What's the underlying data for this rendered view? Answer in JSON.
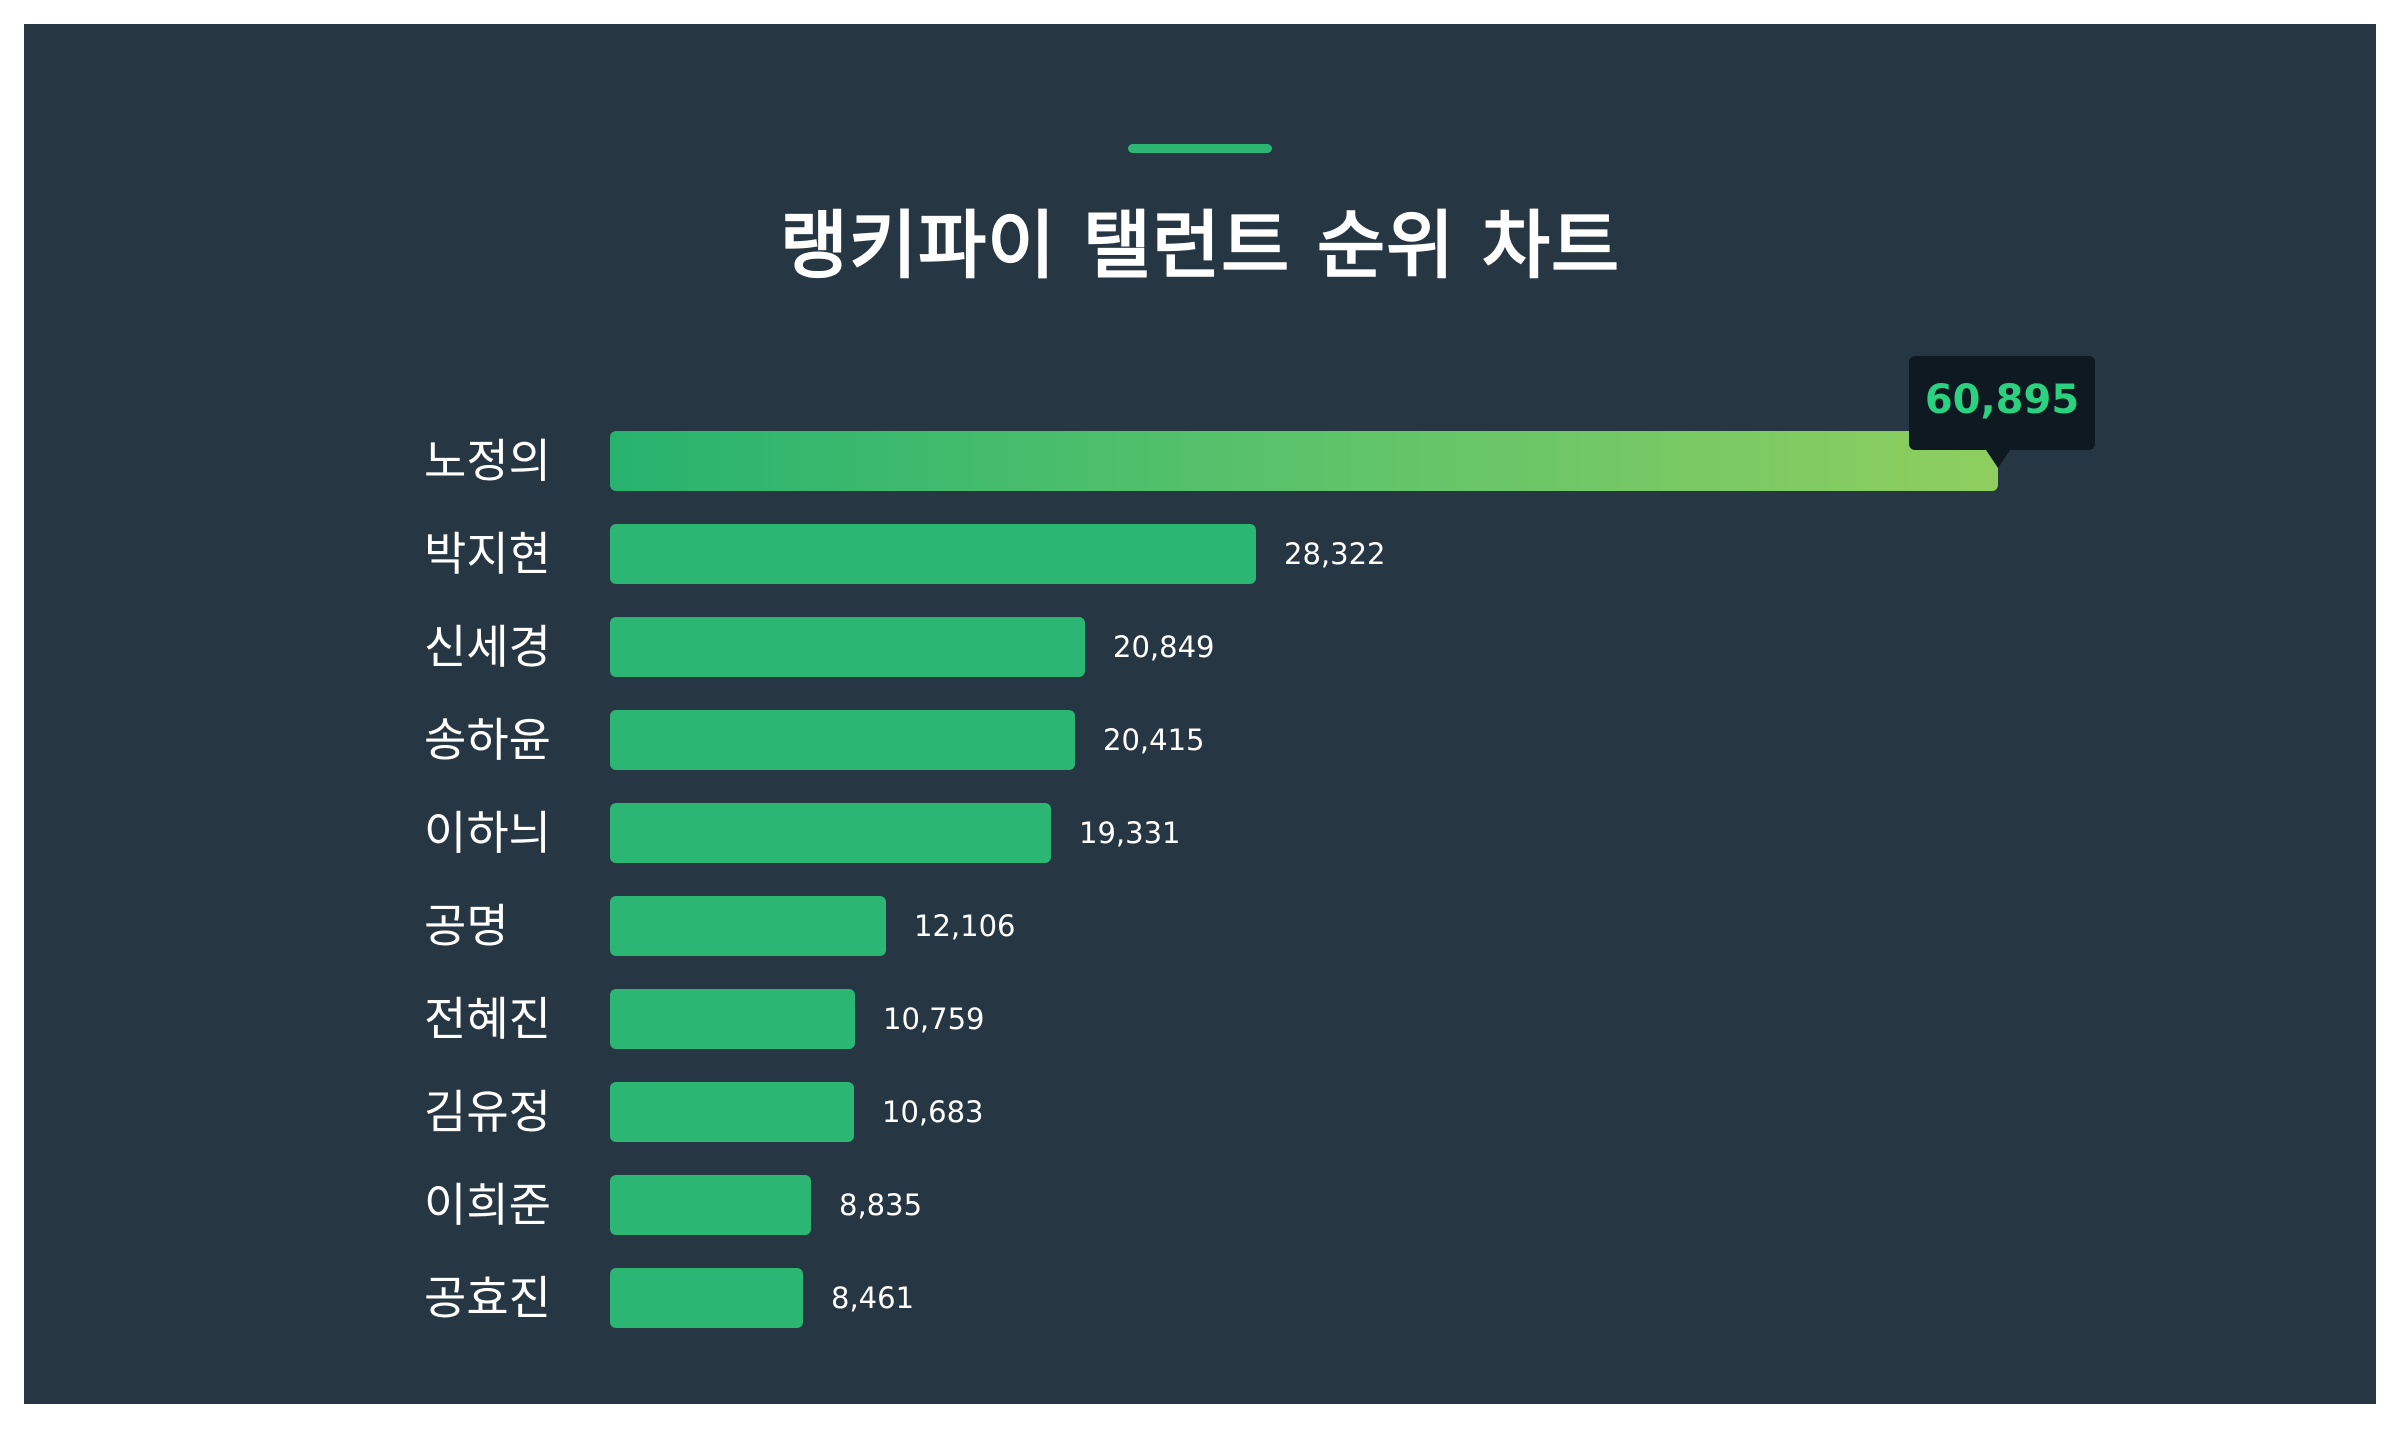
{
  "title": "랭키파이 탤런트 순위 차트",
  "colors": {
    "background": "#263642",
    "bar": "#2bb673",
    "top_bar_gradient": [
      "#27b36f",
      "#8fce5f"
    ],
    "highlight_value": "#2bd17e"
  },
  "chart_data": {
    "type": "bar",
    "orientation": "horizontal",
    "title": "랭키파이 탤런트 순위 차트",
    "categories": [
      "노정의",
      "박지현",
      "신세경",
      "송하윤",
      "이하늬",
      "공명",
      "전혜진",
      "김유정",
      "이희준",
      "공효진"
    ],
    "values": [
      60895,
      28322,
      20849,
      20415,
      19331,
      12106,
      10759,
      10683,
      8835,
      8461
    ],
    "value_labels": [
      "60,895",
      "28,322",
      "20,849",
      "20,415",
      "19,331",
      "12,106",
      "10,759",
      "10,683",
      "8,835",
      "8,461"
    ],
    "xlim": [
      0,
      60895
    ],
    "grid": false,
    "legend": false,
    "highlight_index": 0
  }
}
